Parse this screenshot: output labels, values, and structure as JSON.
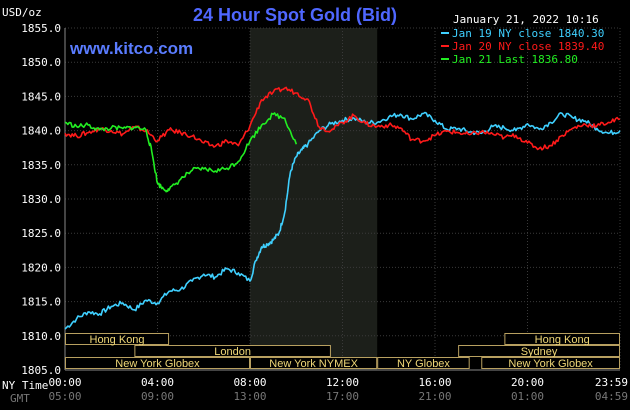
{
  "header": {
    "title": "24 Hour Spot Gold (Bid)",
    "date": "January 21, 2022 10:16",
    "url": "www.kitco.com"
  },
  "chart_data": {
    "type": "line",
    "ylabel": "USD/oz",
    "ylim": [
      1805,
      1855
    ],
    "yticks": [
      "1855.0",
      "1850.0",
      "1845.0",
      "1840.0",
      "1835.0",
      "1830.0",
      "1825.0",
      "1820.0",
      "1815.0",
      "1810.0",
      "1805.0"
    ],
    "xlim": [
      0,
      24
    ],
    "xtick_labels": [
      "00:00",
      "04:00",
      "08:00",
      "12:00",
      "16:00",
      "20:00",
      "23:59"
    ],
    "gmt_tick_labels": [
      "05:00",
      "09:00",
      "13:00",
      "17:00",
      "21:00",
      "01:00",
      "04:59"
    ],
    "row_label_nytime": "NY Time",
    "row_label_gmt": "GMT",
    "highlight_range": [
      8,
      13.5
    ],
    "legend": [
      {
        "text": "Jan 19 NY close 1840.30",
        "color": "#3fd0ff"
      },
      {
        "text": "Jan 20 NY close 1839.40",
        "color": "#ff1a1a"
      },
      {
        "text": "Jan 21 Last 1836.80",
        "color": "#22ee22"
      }
    ],
    "series": [
      {
        "name": "Jan 19",
        "color": "#3fd0ff",
        "x": [
          0,
          0.5,
          1,
          1.5,
          2,
          2.5,
          3,
          3.5,
          4,
          4.5,
          5,
          5.5,
          6,
          6.5,
          7,
          7.5,
          8,
          8.25,
          8.5,
          8.75,
          9,
          9.25,
          9.5,
          9.75,
          10,
          10.25,
          10.5,
          11,
          11.5,
          12,
          12.5,
          13,
          13.5,
          14,
          14.5,
          15,
          15.5,
          16,
          16.5,
          17,
          17.5,
          18,
          18.5,
          19,
          19.5,
          20,
          20.5,
          21,
          21.5,
          22,
          22.5,
          23,
          23.5,
          24
        ],
        "y": [
          1811,
          1812.5,
          1813.5,
          1813.2,
          1814.3,
          1814.8,
          1813.8,
          1815.2,
          1814.8,
          1816.5,
          1816.8,
          1818,
          1819,
          1818.6,
          1819.8,
          1819.2,
          1818,
          1821,
          1823,
          1823.4,
          1824,
          1825,
          1828,
          1834,
          1836.2,
          1837.2,
          1838,
          1840,
          1841,
          1841.5,
          1841.8,
          1841.2,
          1841.2,
          1842,
          1842.4,
          1841.7,
          1842.5,
          1841.5,
          1840.2,
          1840.3,
          1839.8,
          1839.6,
          1840.6,
          1840.4,
          1840,
          1841,
          1840.2,
          1841.2,
          1842.5,
          1841.8,
          1841.4,
          1840.3,
          1839.6,
          1840
        ]
      },
      {
        "name": "Jan 20",
        "color": "#ff1a1a",
        "x": [
          0,
          0.5,
          1,
          1.5,
          2,
          2.5,
          3,
          3.5,
          4,
          4.5,
          5,
          5.5,
          6,
          6.5,
          7,
          7.5,
          8,
          8.5,
          9,
          9.5,
          10,
          10.5,
          11,
          11.5,
          12,
          12.5,
          13,
          13.5,
          14,
          14.5,
          15,
          15.5,
          16,
          16.5,
          17,
          17.5,
          18,
          18.5,
          19,
          19.5,
          20,
          20.5,
          21,
          21.5,
          22,
          22.5,
          23,
          23.5,
          24
        ],
        "y": [
          1839.6,
          1839.2,
          1839.7,
          1840.3,
          1840,
          1839.5,
          1840.5,
          1840,
          1838.5,
          1840.1,
          1839.7,
          1839.2,
          1838.2,
          1837.7,
          1838.5,
          1837.8,
          1840.7,
          1844.5,
          1845.6,
          1846.2,
          1845.5,
          1844.6,
          1840.5,
          1840,
          1841.2,
          1842.2,
          1841,
          1840.6,
          1840.8,
          1840.4,
          1838.7,
          1838.5,
          1839.3,
          1839.9,
          1839.7,
          1839.4,
          1839.8,
          1839.5,
          1839,
          1839.3,
          1838.2,
          1837.4,
          1837.8,
          1839.3,
          1840.4,
          1840.9,
          1840.7,
          1841.2,
          1841.7
        ]
      },
      {
        "name": "Jan 21",
        "color": "#22ee22",
        "x": [
          0,
          0.5,
          1,
          1.5,
          2,
          2.5,
          3,
          3.5,
          3.75,
          4,
          4.25,
          4.5,
          5,
          5.5,
          6,
          6.5,
          7,
          7.5,
          8,
          8.5,
          9,
          9.5,
          10
        ],
        "y": [
          1841.2,
          1840.6,
          1840.8,
          1840.1,
          1840.4,
          1840.3,
          1840.5,
          1840.1,
          1837,
          1832.3,
          1831.5,
          1831.3,
          1832.9,
          1834.2,
          1834.4,
          1834.1,
          1834.5,
          1835.5,
          1838.5,
          1840.8,
          1842.4,
          1841.8,
          1838
        ]
      }
    ],
    "sessions": [
      {
        "label": "Hong Kong",
        "start": 0,
        "end": 4.5,
        "row": 0
      },
      {
        "label": "London",
        "start": 3,
        "end": 11.5,
        "row": 1
      },
      {
        "label": "New York Globex",
        "start": 0,
        "end": 8,
        "row": 2
      },
      {
        "label": "New York NYMEX",
        "start": 8,
        "end": 13.5,
        "row": 2
      },
      {
        "label": "NY Globex",
        "start": 13.5,
        "end": 17.5,
        "row": 2
      },
      {
        "label": "Hong Kong",
        "start": 19,
        "end": 24,
        "row": 0
      },
      {
        "label": "Sydney",
        "start": 17,
        "end": 24,
        "row": 1
      },
      {
        "label": "New York Globex",
        "start": 18,
        "end": 24,
        "row": 2
      }
    ]
  }
}
